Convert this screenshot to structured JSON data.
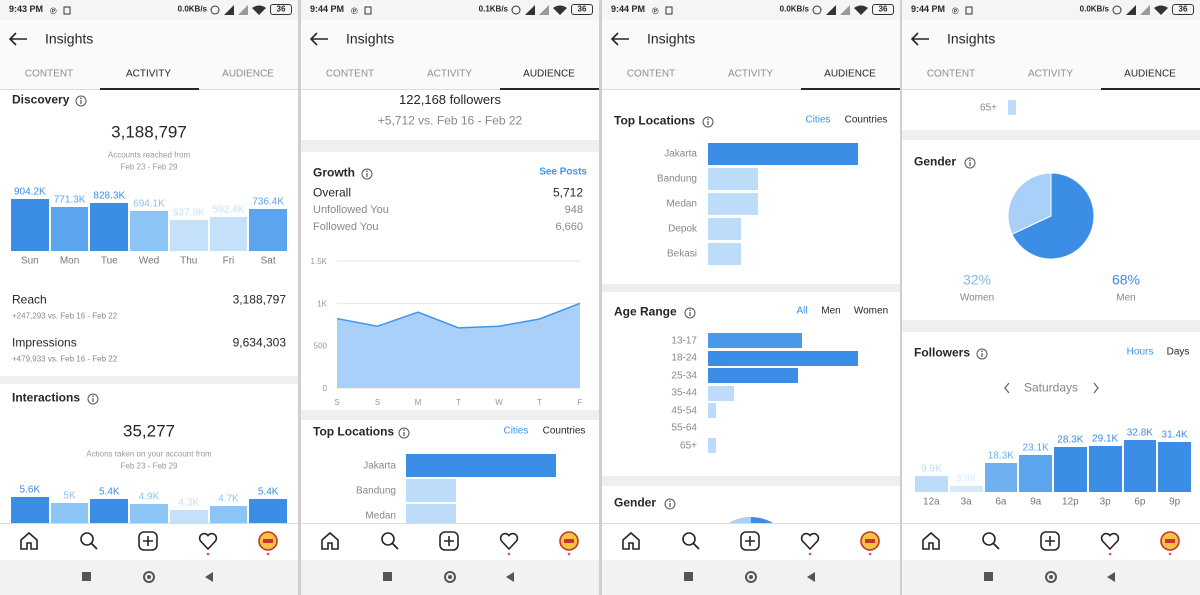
{
  "screens": [
    {
      "status": {
        "time": "9:43 PM",
        "speed": "0.0KB/s",
        "battery": "36"
      },
      "header": "Insights",
      "tabs": [
        "CONTENT",
        "ACTIVITY",
        "AUDIENCE"
      ],
      "active_tab": 1,
      "discovery": {
        "title": "Discovery",
        "total": "3,188,797",
        "caption": "Accounts reached from",
        "period": "Feb 23 - Feb 29",
        "chart": {
          "type": "bar",
          "categories": [
            "Sun",
            "Mon",
            "Tue",
            "Wed",
            "Thu",
            "Fri",
            "Sat"
          ],
          "values": [
            904200,
            771300,
            828300,
            694100,
            537900,
            592400,
            736400
          ],
          "value_labels": [
            "904.2K",
            "771.3K",
            "828.3K",
            "694.1K",
            "537.9K",
            "592.4K",
            "736.4K"
          ],
          "colors": [
            "#3b8de6",
            "#5aa5ee",
            "#3b8de6",
            "#8cc4f5",
            "#c5e0fa",
            "#c5e0fa",
            "#5aa5ee"
          ]
        }
      },
      "reach": {
        "label": "Reach",
        "value": "3,188,797",
        "change": "+247,293 vs. Feb 16 - Feb 22"
      },
      "impressions": {
        "label": "Impressions",
        "value": "9,634,303",
        "change": "+479,933 vs. Feb 16 - Feb 22"
      },
      "interactions": {
        "title": "Interactions",
        "total": "35,277",
        "caption": "Actions taken on your account from",
        "period": "Feb 23 - Feb 29",
        "chart": {
          "type": "bar",
          "values": [
            5600,
            5000,
            5400,
            4900,
            4300,
            4700,
            5400
          ],
          "value_labels": [
            "5.6K",
            "5K",
            "5.4K",
            "4.9K",
            "4.3K",
            "4.7K",
            "5.4K"
          ],
          "colors": [
            "#3b8de6",
            "#8cc4f5",
            "#3b8de6",
            "#8cc4f5",
            "#c5e0fa",
            "#8cc4f5",
            "#3b8de6"
          ]
        }
      }
    },
    {
      "status": {
        "time": "9:44 PM",
        "speed": "0.1KB/s",
        "battery": "36"
      },
      "header": "Insights",
      "tabs": [
        "CONTENT",
        "ACTIVITY",
        "AUDIENCE"
      ],
      "active_tab": 2,
      "followers": {
        "count": "122,168 followers",
        "change": "+5,712 vs. Feb 16 - Feb 22"
      },
      "growth": {
        "title": "Growth",
        "link": "See Posts",
        "rows": [
          [
            "Overall",
            "5,712"
          ],
          [
            "Unfollowed You",
            "948"
          ],
          [
            "Followed You",
            "6,660"
          ]
        ],
        "chart": {
          "type": "area",
          "x": [
            "S",
            "S",
            "M",
            "T",
            "W",
            "T",
            "F"
          ],
          "values": [
            820,
            730,
            895,
            710,
            730,
            815,
            1000
          ],
          "ylim": [
            0,
            1500
          ],
          "yticks": [
            0,
            500,
            {
              "value": 1000,
              "label": "1K"
            },
            {
              "value": 1500,
              "label": "1.5K"
            }
          ],
          "grid": true,
          "color": "#3f95ec",
          "fill": "#a9d0f8"
        }
      },
      "top_locations": {
        "title": "Top Locations",
        "options": [
          "Cities",
          "Countries"
        ],
        "active_option": 0,
        "chart": {
          "type": "hbar",
          "categories": [
            "Jakarta",
            "Bandung",
            "Medan"
          ],
          "values": [
            45,
            15,
            15
          ],
          "colors": [
            "#3b8de6",
            "#bddcf9",
            "#bddcf9"
          ]
        }
      }
    },
    {
      "status": {
        "time": "9:44 PM",
        "speed": "0.0KB/s",
        "battery": "36"
      },
      "header": "Insights",
      "tabs": [
        "CONTENT",
        "ACTIVITY",
        "AUDIENCE"
      ],
      "active_tab": 2,
      "top_locations": {
        "title": "Top Locations",
        "options": [
          "Cities",
          "Countries"
        ],
        "active_option": 0,
        "chart": {
          "type": "hbar",
          "categories": [
            "Jakarta",
            "Bandung",
            "Medan",
            "Depok",
            "Bekasi"
          ],
          "values": [
            45,
            15,
            15,
            10,
            10
          ],
          "colors": [
            "#3b8de6",
            "#bddcf9",
            "#bddcf9",
            "#bddcf9",
            "#bddcf9"
          ]
        }
      },
      "age_range": {
        "title": "Age Range",
        "options": [
          "All",
          "Men",
          "Women"
        ],
        "active_option": 0,
        "chart": {
          "type": "hbar",
          "categories": [
            "13-17",
            "18-24",
            "25-34",
            "35-44",
            "45-54",
            "55-64",
            "65+"
          ],
          "values": [
            25,
            40,
            24,
            7,
            2,
            0,
            2
          ],
          "colors": [
            "#4a98ea",
            "#3b8de6",
            "#3b8de6",
            "#bddcf9",
            "#bddcf9",
            "#bddcf9",
            "#bddcf9"
          ]
        }
      },
      "gender": {
        "title": "Gender"
      }
    },
    {
      "status": {
        "time": "9:44 PM",
        "speed": "0.0KB/s",
        "battery": "36"
      },
      "header": "Insights",
      "tabs": [
        "CONTENT",
        "ACTIVITY",
        "AUDIENCE"
      ],
      "active_tab": 2,
      "age_range_tail": {
        "type": "hbar",
        "categories": [
          "65+"
        ],
        "values": [
          2
        ],
        "colors": [
          "#bddcf9"
        ]
      },
      "gender": {
        "title": "Gender",
        "chart": {
          "type": "pie",
          "categories": [
            "Women",
            "Men"
          ],
          "values": [
            32,
            68
          ],
          "value_labels": [
            "32%",
            "68%"
          ],
          "colors": [
            "#a9d0f8",
            "#3b8de6"
          ]
        }
      },
      "followers": {
        "title": "Followers",
        "options": [
          "Hours",
          "Days"
        ],
        "active_option": 0,
        "day": "Saturdays",
        "chart": {
          "type": "bar",
          "categories": [
            "12a",
            "3a",
            "6a",
            "9a",
            "12p",
            "3p",
            "6p",
            "9p"
          ],
          "values": [
            9900,
            3900,
            18300,
            23100,
            28300,
            29100,
            32800,
            31400
          ],
          "value_labels": [
            "9.9K",
            "3.9K",
            "18.3K",
            "23.1K",
            "28.3K",
            "29.1K",
            "32.8K",
            "31.4K"
          ],
          "colors": [
            "#bddcf9",
            "#d8e9fb",
            "#6fb1f0",
            "#5aa5ee",
            "#3b8de6",
            "#3b8de6",
            "#3b8de6",
            "#3b8de6"
          ]
        }
      }
    }
  ]
}
